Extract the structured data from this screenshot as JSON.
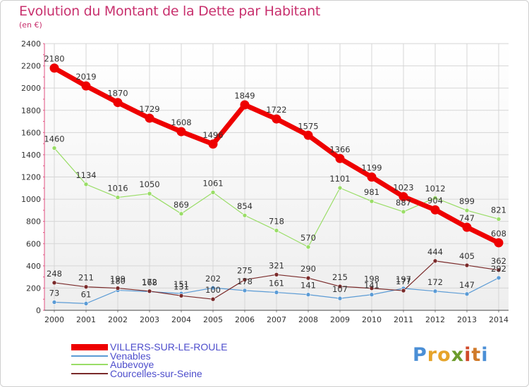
{
  "title": "Evolution du Montant de la Dette par Habitant",
  "subtitle": "(en €)",
  "logo": {
    "text": "Proxiti",
    "letters": [
      {
        "ch": "P",
        "color": "#4b8fd6"
      },
      {
        "ch": "r",
        "color": "#e6a42a"
      },
      {
        "ch": "o",
        "color": "#e6a42a"
      },
      {
        "ch": "x",
        "color": "#6c9c2c"
      },
      {
        "ch": "i",
        "color": "#d04a2a"
      },
      {
        "ch": "t",
        "color": "#d07a2a"
      },
      {
        "ch": "i",
        "color": "#4b8fd6"
      }
    ]
  },
  "chart_data": {
    "type": "line",
    "x": [
      "2000",
      "2001",
      "2002",
      "2003",
      "2004",
      "2005",
      "2006",
      "2007",
      "2008",
      "2009",
      "2010",
      "2011",
      "2012",
      "2013",
      "2014"
    ],
    "ylim": [
      0,
      2400
    ],
    "yticks": [
      0,
      200,
      400,
      600,
      800,
      1000,
      1200,
      1400,
      1600,
      1800,
      2000,
      2200,
      2400
    ],
    "grid": true,
    "legend_placement": "bottom-left",
    "series": [
      {
        "name": "VILLERS-SUR-LE-ROULE",
        "color": "#ee0000",
        "width": 7,
        "marker": 6,
        "values": [
          2180,
          2019,
          1870,
          1729,
          1608,
          1496,
          1849,
          1722,
          1575,
          1366,
          1199,
          1023,
          904,
          747,
          608
        ],
        "labels": [
          "2180",
          "2019",
          "1870",
          "1729",
          "1608",
          "1496",
          "1849",
          "1722",
          "1575",
          "1366",
          "1199",
          "1023",
          "904",
          "747",
          "608"
        ]
      },
      {
        "name": "Venables",
        "color": "#5b9bd5",
        "width": 1.2,
        "marker": 3,
        "values": [
          73,
          61,
          180,
          168,
          151,
          202,
          178,
          161,
          141,
          107,
          141,
          197,
          172,
          147,
          292
        ],
        "labels": [
          "73",
          "61",
          "180",
          "168",
          "151",
          "202",
          "178",
          "161",
          "141",
          "107",
          "141",
          "197",
          "172",
          "147",
          "292"
        ]
      },
      {
        "name": "Aubevoye",
        "color": "#99dd66",
        "width": 1.2,
        "marker": 3,
        "values": [
          1460,
          1134,
          1016,
          1050,
          869,
          1061,
          854,
          718,
          570,
          1101,
          981,
          887,
          1012,
          899,
          821
        ],
        "labels": [
          "1460",
          "1134",
          "1016",
          "1050",
          "869",
          "1061",
          "854",
          "718",
          "570",
          "1101",
          "981",
          "887",
          "1012",
          "899",
          "821"
        ]
      },
      {
        "name": "Courcelles-sur-Seine",
        "color": "#7a2a2a",
        "width": 1.2,
        "marker": 3,
        "values": [
          248,
          211,
          199,
          172,
          131,
          100,
          275,
          321,
          290,
          215,
          198,
          177,
          444,
          405,
          362
        ],
        "labels": [
          "248",
          "211",
          "199",
          "172",
          "131",
          "100",
          "275",
          "321",
          "290",
          "215",
          "198",
          "177",
          "444",
          "405",
          "362"
        ]
      }
    ]
  }
}
